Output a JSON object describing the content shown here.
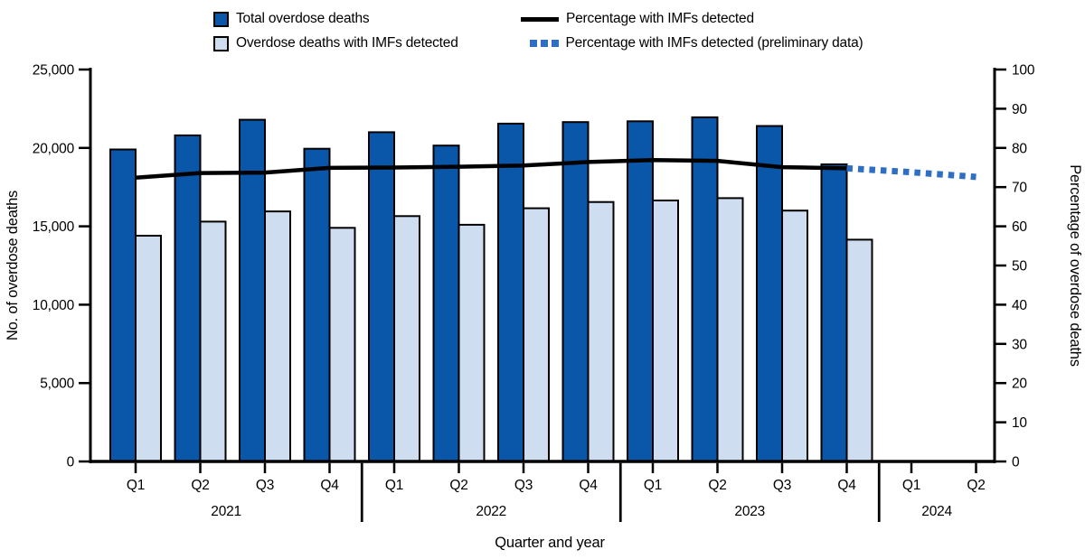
{
  "figure": {
    "legend": [
      {
        "label": "Total overdose deaths",
        "swatch": "bar",
        "color": "#0a56a8"
      },
      {
        "label": "Overdose deaths with IMFs detected",
        "swatch": "bar",
        "color": "#cfddf1"
      },
      {
        "label": "Percentage with IMFs detected",
        "swatch": "line",
        "color": "#000000"
      },
      {
        "label": "Percentage with IMFs detected (preliminary data)",
        "swatch": "dotted-line",
        "color": "#2e6fc4"
      }
    ]
  },
  "chart_data": {
    "type": "combo_bar_line",
    "categories": [
      "2021 Q1",
      "2021 Q2",
      "2021 Q3",
      "2021 Q4",
      "2022 Q1",
      "2022 Q2",
      "2022 Q3",
      "2022 Q4",
      "2023 Q1",
      "2023 Q2",
      "2023 Q3",
      "2023 Q4",
      "2024 Q1",
      "2024 Q2"
    ],
    "x_groups": [
      {
        "year": "2021",
        "quarters": [
          "Q1",
          "Q2",
          "Q3",
          "Q4"
        ]
      },
      {
        "year": "2022",
        "quarters": [
          "Q1",
          "Q2",
          "Q3",
          "Q4"
        ]
      },
      {
        "year": "2023",
        "quarters": [
          "Q1",
          "Q2",
          "Q3",
          "Q4"
        ]
      },
      {
        "year": "2024",
        "quarters": [
          "Q1",
          "Q2"
        ]
      }
    ],
    "series": [
      {
        "name": "Total overdose deaths",
        "type": "bar",
        "axis": "left",
        "color": "#0a56a8",
        "values": [
          19900,
          20800,
          21800,
          19950,
          21000,
          20150,
          21550,
          21650,
          21700,
          21950,
          21400,
          18950,
          null,
          null
        ]
      },
      {
        "name": "Overdose deaths with IMFs detected",
        "type": "bar",
        "axis": "left",
        "color": "#cfddf1",
        "values": [
          14400,
          15300,
          15950,
          14900,
          15650,
          15100,
          16150,
          16550,
          16650,
          16800,
          16000,
          14150,
          null,
          null
        ]
      },
      {
        "name": "Percentage with IMFs detected",
        "type": "line",
        "style": "solid",
        "axis": "right",
        "color": "#000000",
        "values": [
          72.4,
          73.6,
          73.7,
          74.9,
          75.0,
          75.2,
          75.5,
          76.4,
          76.9,
          76.7,
          75.1,
          74.8,
          null,
          null
        ]
      },
      {
        "name": "Percentage with IMFs detected (preliminary data)",
        "type": "line",
        "style": "dotted",
        "axis": "right",
        "color": "#2e6fc4",
        "values": [
          null,
          null,
          null,
          null,
          null,
          null,
          null,
          null,
          null,
          null,
          null,
          74.8,
          73.8,
          72.6
        ]
      }
    ],
    "left_axis": {
      "title": "No. of overdose deaths",
      "min": 0,
      "max": 25000,
      "tick_step": 5000,
      "ticks": [
        "0",
        "5,000",
        "10,000",
        "15,000",
        "20,000",
        "25,000"
      ]
    },
    "right_axis": {
      "title": "Percentage of overdose deaths",
      "min": 0,
      "max": 100,
      "tick_step": 10,
      "ticks": [
        "0",
        "10",
        "20",
        "30",
        "40",
        "50",
        "60",
        "70",
        "80",
        "90",
        "100"
      ]
    },
    "x_axis": {
      "title": "Quarter and year"
    },
    "grid": false,
    "legend_position": "top"
  }
}
